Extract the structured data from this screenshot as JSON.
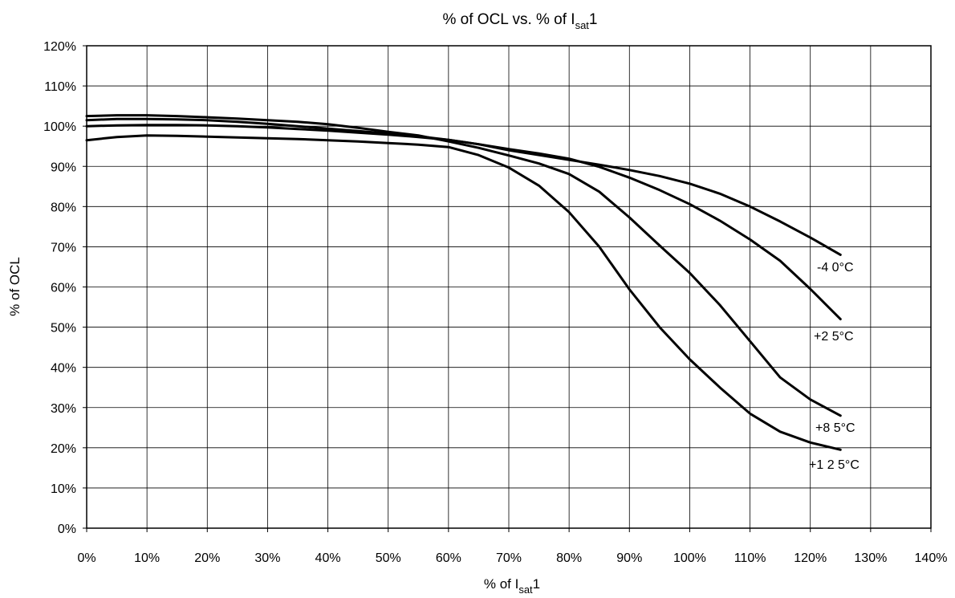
{
  "chart_data": {
    "type": "line",
    "title": {
      "main": "% of OCL vs. % of I",
      "sub": "sat",
      "suffix": "1"
    },
    "xlabel": {
      "main": "% of I",
      "sub": "sat",
      "suffix": "1"
    },
    "ylabel": "% of  OCL",
    "xlim": [
      0,
      140
    ],
    "ylim": [
      0,
      120
    ],
    "grid": true,
    "x_ticks": [
      "0%",
      "10%",
      "20%",
      "30%",
      "40%",
      "50%",
      "60%",
      "70%",
      "80%",
      "90%",
      "100%",
      "110%",
      "120%",
      "130%",
      "140%"
    ],
    "y_ticks": [
      "0%",
      "10%",
      "20%",
      "30%",
      "40%",
      "50%",
      "60%",
      "70%",
      "80%",
      "90%",
      "100%",
      "110%",
      "120%"
    ],
    "series": [
      {
        "name": "-4 0°C",
        "x": [
          0,
          5,
          10,
          15,
          20,
          25,
          30,
          35,
          40,
          45,
          50,
          55,
          60,
          65,
          70,
          75,
          80,
          85,
          90,
          95,
          100,
          105,
          110,
          115,
          120,
          125
        ],
        "y": [
          100,
          100.2,
          100.3,
          100.3,
          100.2,
          100.0,
          99.7,
          99.3,
          98.9,
          98.4,
          97.9,
          97.3,
          96.6,
          95.5,
          94.0,
          92.8,
          91.6,
          90.4,
          89.1,
          87.6,
          85.7,
          83.2,
          80.0,
          76.3,
          72.3,
          68.0
        ]
      },
      {
        "name": "+2 5°C",
        "x": [
          0,
          5,
          10,
          15,
          20,
          25,
          30,
          35,
          40,
          45,
          50,
          55,
          60,
          65,
          70,
          75,
          80,
          85,
          90,
          95,
          100,
          105,
          110,
          115,
          120,
          125
        ],
        "y": [
          101.5,
          101.8,
          101.8,
          101.7,
          101.5,
          101.1,
          100.6,
          100.0,
          99.4,
          98.8,
          98.2,
          97.5,
          96.6,
          95.5,
          94.3,
          93.2,
          91.9,
          89.9,
          87.2,
          84.1,
          80.6,
          76.5,
          71.8,
          66.5,
          59.5,
          52.0
        ]
      },
      {
        "name": "+8 5°C",
        "x": [
          0,
          5,
          10,
          15,
          20,
          25,
          30,
          35,
          40,
          45,
          50,
          55,
          60,
          65,
          70,
          75,
          80,
          85,
          90,
          95,
          100,
          105,
          110,
          115,
          120,
          125
        ],
        "y": [
          102.5,
          102.7,
          102.7,
          102.5,
          102.2,
          101.9,
          101.5,
          101.1,
          100.5,
          99.6,
          98.6,
          97.7,
          96.2,
          94.6,
          92.7,
          90.7,
          88.1,
          83.7,
          77.3,
          70.3,
          63.5,
          55.5,
          46.5,
          37.5,
          32.0,
          28.0
        ]
      },
      {
        "name": "+1 2 5°C",
        "x": [
          0,
          5,
          10,
          15,
          20,
          25,
          30,
          35,
          40,
          45,
          50,
          55,
          60,
          65,
          70,
          75,
          80,
          85,
          90,
          95,
          100,
          105,
          110,
          115,
          120,
          125
        ],
        "y": [
          96.5,
          97.3,
          97.7,
          97.6,
          97.4,
          97.2,
          97.0,
          96.8,
          96.5,
          96.2,
          95.8,
          95.4,
          94.8,
          92.8,
          89.7,
          85.2,
          78.6,
          70.0,
          59.4,
          50.0,
          42.0,
          35.0,
          28.5,
          24.0,
          21.3,
          19.5
        ]
      }
    ]
  }
}
